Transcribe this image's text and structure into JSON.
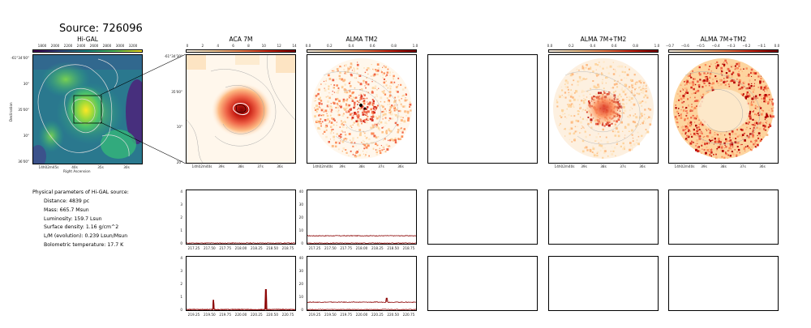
{
  "header": {
    "title": "Source: 726096"
  },
  "panels": {
    "higal": {
      "title": "Hi-GAL",
      "cbar_ticks": [
        "1800",
        "2000",
        "2200",
        "2400",
        "2600",
        "2800",
        "3000",
        "3200"
      ],
      "y_ticks": [
        "-61°34'00\"",
        "30\"",
        "35'00\"",
        "30\"",
        "36'00\""
      ],
      "x_ticks": [
        "14h02m45s",
        "40s",
        "35s",
        "30s"
      ],
      "ylabel": "Declination",
      "xlabel": "Right Ascension"
    },
    "aca": {
      "title": "ACA 7M",
      "cbar_ticks": [
        "0",
        "2",
        "4",
        "6",
        "8",
        "10",
        "12",
        "14"
      ],
      "y_ticks": [
        "-61°34'30\"",
        "35'00\"",
        "10\"",
        "20\""
      ],
      "x_ticks": [
        "14h02m40s",
        "39s",
        "38s",
        "37s",
        "36s"
      ]
    },
    "tm2": {
      "title": "ALMA TM2",
      "cbar_ticks": [
        "0.0",
        "0.2",
        "0.4",
        "0.6",
        "0.8",
        "1.0"
      ],
      "x_ticks": [
        "14h02m40s",
        "39s",
        "38s",
        "37s",
        "36s"
      ]
    },
    "combo1": {
      "title": "ALMA 7M+TM2",
      "cbar_ticks": [
        "0.0",
        "0.2",
        "0.4",
        "0.6",
        "0.8",
        "1.0"
      ],
      "x_ticks": [
        "14h02m40s",
        "39s",
        "38s",
        "37s",
        "36s"
      ]
    },
    "combo2": {
      "title": "ALMA 7M+TM2",
      "cbar_ticks": [
        "−0.7",
        "−0.6",
        "−0.5",
        "−0.4",
        "−0.3",
        "−0.2",
        "−0.1",
        "0.0"
      ],
      "x_ticks": [
        "14h02m40s",
        "39s",
        "38s",
        "37s",
        "36s"
      ]
    }
  },
  "params": {
    "heading": "Physical parameters of Hi-GAL source:",
    "items": [
      "Distance: 4839 pc",
      "Mass: 665.7 Msun",
      "Luminosity: 159.7 Lsun",
      "Surface density: 1.16 g/cm^2",
      "L/M (evolution): 0.239 Lsun/Msun",
      "Bolometric temperature: 17.7 K"
    ]
  },
  "chart_data": [
    {
      "type": "line",
      "panel": "spectrum-aca-top",
      "x_ticks": [
        "217.25",
        "217.50",
        "217.75",
        "218.00",
        "218.25",
        "218.50",
        "218.75"
      ],
      "y_ticks": [
        "0",
        "1",
        "2",
        "3",
        "4"
      ],
      "ylim": [
        0,
        4
      ],
      "series": [
        {
          "values": [
            0.05,
            0.08,
            0.04,
            0.06,
            0.03,
            0.07,
            0.05,
            0.04,
            0.06,
            0.05
          ]
        }
      ]
    },
    {
      "type": "line",
      "panel": "spectrum-aca-bottom",
      "x_ticks": [
        "219.25",
        "219.50",
        "219.75",
        "220.00",
        "220.25",
        "220.50",
        "220.75"
      ],
      "y_ticks": [
        "0",
        "1",
        "2",
        "3",
        "4"
      ],
      "ylim": [
        0,
        4
      ],
      "peaks": [
        {
          "x": 219.56,
          "y": 0.75
        },
        {
          "x": 220.4,
          "y": 1.55
        }
      ]
    },
    {
      "type": "line",
      "panel": "spectrum-tm2-top",
      "x_ticks": [
        "217.25",
        "217.50",
        "217.75",
        "218.00",
        "218.25",
        "218.50",
        "218.75"
      ],
      "y_ticks": [
        "0",
        "10",
        "20",
        "30",
        "40"
      ],
      "ylim": [
        0,
        40
      ],
      "series": [
        {
          "values": [
            6,
            6,
            6,
            6,
            6,
            6,
            6
          ]
        },
        {
          "values": [
            0.5,
            0.5,
            0.5,
            0.5,
            0.5,
            0.5,
            0.5
          ]
        }
      ]
    },
    {
      "type": "line",
      "panel": "spectrum-tm2-bottom",
      "x_ticks": [
        "219.25",
        "219.50",
        "219.75",
        "220.00",
        "220.25",
        "220.50",
        "220.75"
      ],
      "y_ticks": [
        "0",
        "10",
        "20",
        "30",
        "40"
      ],
      "ylim": [
        0,
        40
      ],
      "series": [
        {
          "values": [
            6,
            6,
            6,
            6,
            6,
            6,
            6
          ]
        },
        {
          "values": [
            0.5,
            0.5,
            0.5,
            0.5,
            0.5,
            0.5,
            0.5
          ]
        }
      ],
      "peaks": [
        {
          "x": 220.4,
          "y": 9
        }
      ]
    }
  ],
  "colors": {
    "spectrum": "#8b0000",
    "contour": "#bbbbbb",
    "aperture": "#000000"
  }
}
